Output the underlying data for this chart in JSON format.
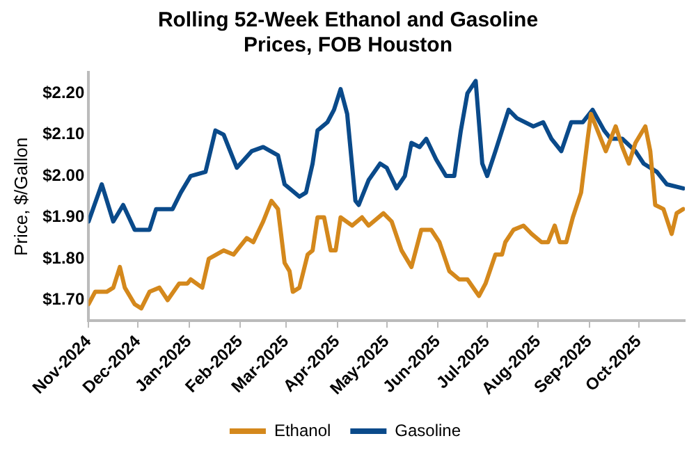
{
  "chart_data": {
    "type": "line",
    "title": "Rolling 52-Week Ethanol and Gasoline Prices, FOB Houston",
    "ylabel": "Price, $/Gallon",
    "xlim": [
      "2024-11-01",
      "2025-10-29"
    ],
    "xticks": [
      {
        "value": "2024-11-01",
        "label": "Nov-2024"
      },
      {
        "value": "2024-12-01",
        "label": "Dec-2024"
      },
      {
        "value": "2025-01-01",
        "label": "Jan-2025"
      },
      {
        "value": "2025-02-01",
        "label": "Feb-2025"
      },
      {
        "value": "2025-03-01",
        "label": "Mar-2025"
      },
      {
        "value": "2025-04-01",
        "label": "Apr-2025"
      },
      {
        "value": "2025-05-01",
        "label": "May-2025"
      },
      {
        "value": "2025-06-01",
        "label": "Jun-2025"
      },
      {
        "value": "2025-07-01",
        "label": "Jul-2025"
      },
      {
        "value": "2025-08-01",
        "label": "Aug-2025"
      },
      {
        "value": "2025-09-01",
        "label": "Sep-2025"
      },
      {
        "value": "2025-10-01",
        "label": "Oct-2025"
      }
    ],
    "ylim": [
      1.65,
      2.25
    ],
    "yticks": [
      {
        "value": 1.7,
        "label": "$1.70"
      },
      {
        "value": 1.8,
        "label": "$1.80"
      },
      {
        "value": 1.9,
        "label": "$1.90"
      },
      {
        "value": 2.0,
        "label": "$2.00"
      },
      {
        "value": 2.1,
        "label": "$2.10"
      },
      {
        "value": 2.2,
        "label": "$2.20"
      }
    ],
    "grid": false,
    "legend": "bottom",
    "marker": "none",
    "line_style": "solid",
    "series": [
      {
        "name": "Ethanol",
        "color": "#d4881c",
        "x": [
          "2024-11-01",
          "2024-11-05",
          "2024-11-12",
          "2024-11-16",
          "2024-11-20",
          "2024-11-23",
          "2024-11-29",
          "2024-12-03",
          "2024-12-08",
          "2024-12-14",
          "2024-12-19",
          "2024-12-26",
          "2024-12-31",
          "2025-01-02",
          "2025-01-09",
          "2025-01-13",
          "2025-01-22",
          "2025-01-28",
          "2025-02-01",
          "2025-02-05",
          "2025-02-09",
          "2025-02-15",
          "2025-02-20",
          "2025-02-24",
          "2025-02-28",
          "2025-03-03",
          "2025-03-05",
          "2025-03-09",
          "2025-03-14",
          "2025-03-17",
          "2025-03-20",
          "2025-03-24",
          "2025-03-28",
          "2025-03-31",
          "2025-04-03",
          "2025-04-10",
          "2025-04-16",
          "2025-04-20",
          "2025-04-29",
          "2025-05-04",
          "2025-05-10",
          "2025-05-16",
          "2025-05-22",
          "2025-05-28",
          "2025-06-02",
          "2025-06-08",
          "2025-06-14",
          "2025-06-19",
          "2025-06-26",
          "2025-06-30",
          "2025-07-06",
          "2025-07-10",
          "2025-07-12",
          "2025-07-17",
          "2025-07-23",
          "2025-07-28",
          "2025-08-03",
          "2025-08-07",
          "2025-08-11",
          "2025-08-14",
          "2025-08-18",
          "2025-08-22",
          "2025-08-27",
          "2025-08-31",
          "2025-09-02",
          "2025-09-07",
          "2025-09-11",
          "2025-09-17",
          "2025-09-21",
          "2025-09-25",
          "2025-09-29",
          "2025-10-05",
          "2025-10-08",
          "2025-10-11",
          "2025-10-16",
          "2025-10-21",
          "2025-10-24",
          "2025-10-28"
        ],
        "values": [
          1.69,
          1.72,
          1.72,
          1.73,
          1.78,
          1.73,
          1.69,
          1.68,
          1.72,
          1.73,
          1.7,
          1.74,
          1.74,
          1.75,
          1.73,
          1.8,
          1.82,
          1.81,
          1.83,
          1.85,
          1.84,
          1.89,
          1.94,
          1.92,
          1.79,
          1.77,
          1.72,
          1.73,
          1.81,
          1.82,
          1.9,
          1.9,
          1.82,
          1.82,
          1.9,
          1.88,
          1.9,
          1.88,
          1.91,
          1.89,
          1.82,
          1.78,
          1.87,
          1.87,
          1.84,
          1.77,
          1.75,
          1.75,
          1.71,
          1.74,
          1.81,
          1.81,
          1.84,
          1.87,
          1.88,
          1.86,
          1.84,
          1.84,
          1.88,
          1.84,
          1.84,
          1.9,
          1.96,
          2.09,
          2.15,
          2.1,
          2.06,
          2.12,
          2.07,
          2.03,
          2.08,
          2.12,
          2.06,
          1.93,
          1.92,
          1.86,
          1.91,
          1.92
        ]
      },
      {
        "name": "Gasoline",
        "color": "#0a4a8a",
        "x": [
          "2024-11-01",
          "2024-11-09",
          "2024-11-16",
          "2024-11-22",
          "2024-11-29",
          "2024-12-08",
          "2024-12-12",
          "2024-12-22",
          "2024-12-27",
          "2025-01-02",
          "2025-01-11",
          "2025-01-17",
          "2025-01-22",
          "2025-01-28",
          "2025-01-30",
          "2025-02-08",
          "2025-02-15",
          "2025-02-24",
          "2025-02-28",
          "2025-03-09",
          "2025-03-13",
          "2025-03-17",
          "2025-03-20",
          "2025-03-26",
          "2025-03-30",
          "2025-04-03",
          "2025-04-07",
          "2025-04-12",
          "2025-04-14",
          "2025-04-20",
          "2025-04-27",
          "2025-05-01",
          "2025-05-07",
          "2025-05-12",
          "2025-05-16",
          "2025-05-21",
          "2025-05-25",
          "2025-05-31",
          "2025-06-06",
          "2025-06-11",
          "2025-06-15",
          "2025-06-19",
          "2025-06-24",
          "2025-06-28",
          "2025-07-01",
          "2025-07-06",
          "2025-07-14",
          "2025-07-19",
          "2025-07-29",
          "2025-08-04",
          "2025-08-09",
          "2025-08-15",
          "2025-08-21",
          "2025-08-28",
          "2025-09-03",
          "2025-09-10",
          "2025-09-14",
          "2025-09-21",
          "2025-09-29",
          "2025-10-04",
          "2025-10-12",
          "2025-10-18",
          "2025-10-28"
        ],
        "values": [
          1.89,
          1.98,
          1.89,
          1.93,
          1.87,
          1.87,
          1.92,
          1.92,
          1.96,
          2.0,
          2.01,
          2.11,
          2.1,
          2.04,
          2.02,
          2.06,
          2.07,
          2.05,
          1.98,
          1.95,
          1.96,
          2.03,
          2.11,
          2.13,
          2.16,
          2.21,
          2.15,
          1.94,
          1.93,
          1.99,
          2.03,
          2.02,
          1.97,
          2.0,
          2.08,
          2.07,
          2.09,
          2.04,
          2.0,
          2.0,
          2.11,
          2.2,
          2.23,
          2.03,
          2.0,
          2.06,
          2.16,
          2.14,
          2.12,
          2.13,
          2.09,
          2.06,
          2.13,
          2.13,
          2.16,
          2.11,
          2.09,
          2.09,
          2.06,
          2.03,
          2.01,
          1.98,
          1.97
        ]
      }
    ]
  }
}
